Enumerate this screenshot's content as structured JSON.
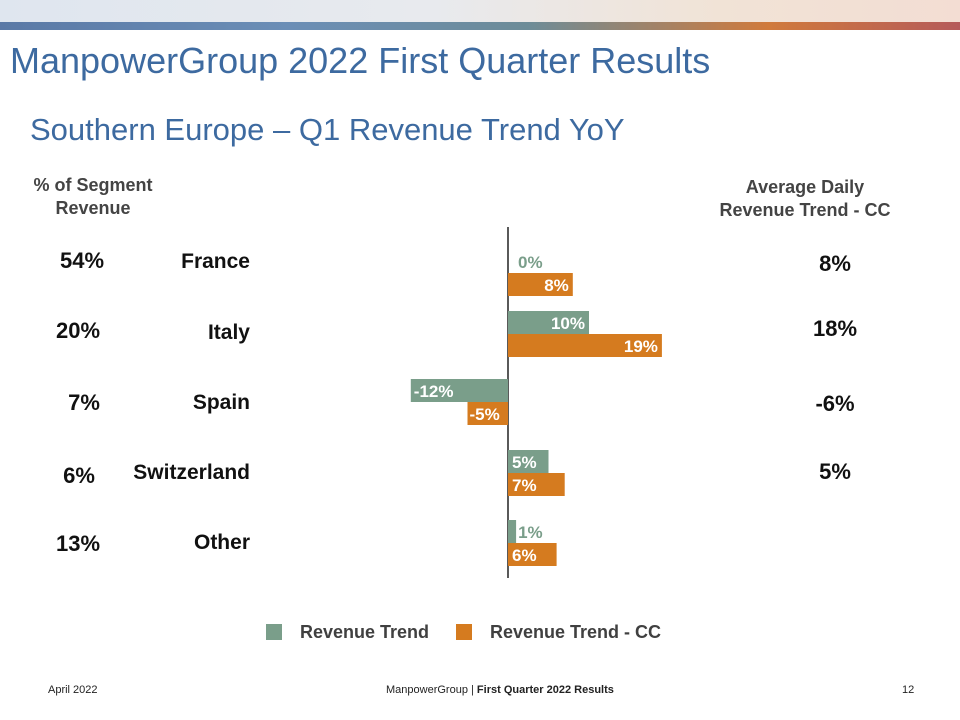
{
  "header": {
    "title": "ManpowerGroup 2022 First Quarter Results",
    "subtitle": "Southern Europe – Q1 Revenue Trend YoY"
  },
  "columns": {
    "left_header_line1": "% of Segment",
    "left_header_line2": "Revenue",
    "right_header_line1": "Average Daily",
    "right_header_line2": "Revenue Trend - CC"
  },
  "rows": [
    {
      "region": "France",
      "pct": "54%",
      "adcc": "8%"
    },
    {
      "region": "Italy",
      "pct": "20%",
      "adcc": "18%"
    },
    {
      "region": "Spain",
      "pct": "7%",
      "adcc": "-6%"
    },
    {
      "region": "Switzerland",
      "pct": "6%",
      "adcc": "5%"
    },
    {
      "region": "Other",
      "pct": "13%",
      "adcc": ""
    }
  ],
  "chart_data": {
    "type": "bar",
    "orientation": "horizontal",
    "categories": [
      "France",
      "Italy",
      "Spain",
      "Switzerland",
      "Other"
    ],
    "series": [
      {
        "name": "Revenue Trend",
        "color": "#7a9e8a",
        "values": [
          0,
          10,
          -12,
          5,
          1
        ],
        "labels": [
          "0%",
          "10%",
          "-12%",
          "5%",
          "1%"
        ]
      },
      {
        "name": "Revenue Trend - CC",
        "color": "#d57b1f",
        "values": [
          8,
          19,
          -5,
          7,
          6
        ],
        "labels": [
          "8%",
          "19%",
          "-5%",
          "7%",
          "6%"
        ]
      }
    ],
    "xlim": [
      -15,
      25
    ],
    "grid": false,
    "legend_position": "bottom"
  },
  "legend": {
    "item1": "Revenue Trend",
    "item2": "Revenue Trend - CC",
    "color1": "#7a9e8a",
    "color2": "#d57b1f"
  },
  "footer": {
    "date": "April 2022",
    "company": "ManpowerGroup",
    "separator": "|",
    "report": "First Quarter 2022 Results",
    "page": "12"
  }
}
